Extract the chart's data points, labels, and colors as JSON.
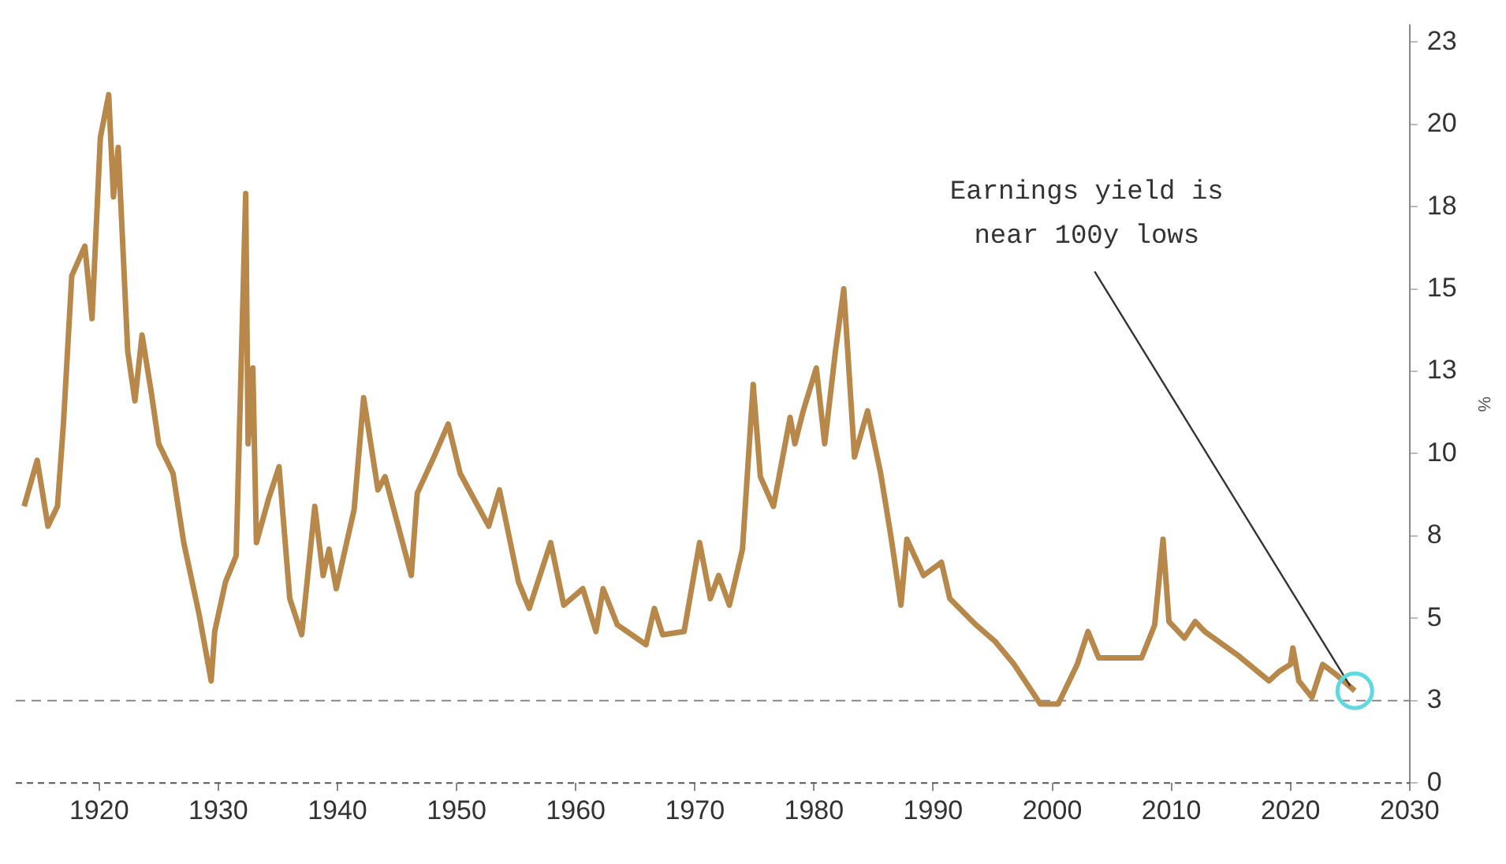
{
  "chart_data": {
    "type": "line",
    "ylabel": "%",
    "series": [
      {
        "color": "#b8884a",
        "x": [
          1913.7,
          1914.8,
          1915.7,
          1916.5,
          1917.0,
          1917.7,
          1918.8,
          1919.4,
          1920.1,
          1920.8,
          1921.2,
          1921.6,
          1922.4,
          1923.0,
          1923.6,
          1924.4,
          1925.0,
          1926.2,
          1927.1,
          1928.4,
          1929.4,
          1929.7,
          1930.6,
          1931.5,
          1932.3,
          1932.5,
          1932.9,
          1933.2,
          1934.2,
          1935.1,
          1936.0,
          1937.0,
          1938.1,
          1938.8,
          1939.3,
          1939.9,
          1941.4,
          1942.2,
          1943.4,
          1944.0,
          1946.2,
          1946.7,
          1948.1,
          1949.3,
          1950.3,
          1952.7,
          1953.6,
          1955.2,
          1956.1,
          1957.9,
          1959.0,
          1960.6,
          1961.7,
          1962.3,
          1963.5,
          1965.9,
          1966.6,
          1967.3,
          1969.1,
          1970.4,
          1971.3,
          1972.0,
          1972.9,
          1974.0,
          1974.9,
          1975.5,
          1976.6,
          1978.0,
          1978.4,
          1979.1,
          1980.2,
          1980.9,
          1981.8,
          1982.5,
          1983.4,
          1984.5,
          1985.6,
          1986.5,
          1987.3,
          1987.8,
          1989.2,
          1990.7,
          1991.4,
          1993.6,
          1995.2,
          1996.8,
          1999.0,
          2000.5,
          2002.1,
          2003.0,
          2003.9,
          2007.5,
          2008.6,
          2009.3,
          2009.8,
          2011.1,
          2012.0,
          2012.8,
          2015.5,
          2018.2,
          2019.1,
          2020.0,
          2020.2,
          2020.7,
          2021.8,
          2022.7,
          2023.8,
          2025.4
        ],
        "values": [
          8.4,
          9.8,
          7.8,
          8.4,
          10.9,
          15.4,
          16.3,
          14.1,
          19.6,
          20.9,
          17.8,
          19.3,
          13.1,
          11.6,
          13.6,
          11.8,
          10.3,
          9.4,
          7.3,
          5.1,
          3.1,
          4.6,
          6.1,
          6.9,
          17.9,
          10.3,
          12.6,
          7.3,
          8.6,
          9.6,
          5.6,
          4.5,
          8.4,
          6.3,
          7.1,
          5.9,
          8.3,
          11.7,
          8.9,
          9.3,
          6.3,
          8.8,
          9.9,
          10.9,
          9.4,
          7.8,
          8.9,
          6.1,
          5.3,
          7.3,
          5.4,
          5.9,
          4.6,
          5.9,
          4.8,
          4.2,
          5.3,
          4.5,
          4.6,
          7.3,
          5.6,
          6.3,
          5.4,
          7.1,
          12.1,
          9.3,
          8.4,
          11.1,
          10.3,
          11.3,
          12.6,
          10.3,
          13.1,
          15.0,
          9.9,
          11.3,
          9.4,
          7.4,
          5.4,
          7.4,
          6.3,
          6.7,
          5.6,
          4.8,
          4.3,
          3.6,
          2.4,
          2.4,
          3.6,
          4.6,
          3.8,
          3.8,
          4.8,
          7.4,
          4.9,
          4.4,
          4.9,
          4.6,
          3.9,
          3.1,
          3.4,
          3.6,
          4.1,
          3.1,
          2.6,
          3.6,
          3.3,
          2.8
        ]
      }
    ],
    "xlim": [
      1913,
      2030
    ],
    "xticks": [
      1920,
      1930,
      1940,
      1950,
      1960,
      1970,
      1980,
      1990,
      2000,
      2010,
      2020,
      2030
    ],
    "ylim": [
      0,
      23
    ],
    "yticks": [
      {
        "value": 0,
        "label": "0"
      },
      {
        "value": 2.5,
        "label": "3"
      },
      {
        "value": 5,
        "label": "5"
      },
      {
        "value": 7.5,
        "label": "8"
      },
      {
        "value": 10,
        "label": "10"
      },
      {
        "value": 12.5,
        "label": "13"
      },
      {
        "value": 15,
        "label": "15"
      },
      {
        "value": 17.5,
        "label": "18"
      },
      {
        "value": 20,
        "label": "20"
      },
      {
        "value": 22.5,
        "label": "23"
      }
    ],
    "ref_lines": [
      {
        "axis": "y",
        "value": 2.5,
        "color": "#888888",
        "line_style": "dashed"
      }
    ],
    "annotations": [
      {
        "text": "Earnings yield is\nnear 100y lows",
        "x": 2025.4,
        "y": 2.8
      }
    ],
    "grid": false,
    "legend": false,
    "marker": "none",
    "line_style": "solid"
  }
}
